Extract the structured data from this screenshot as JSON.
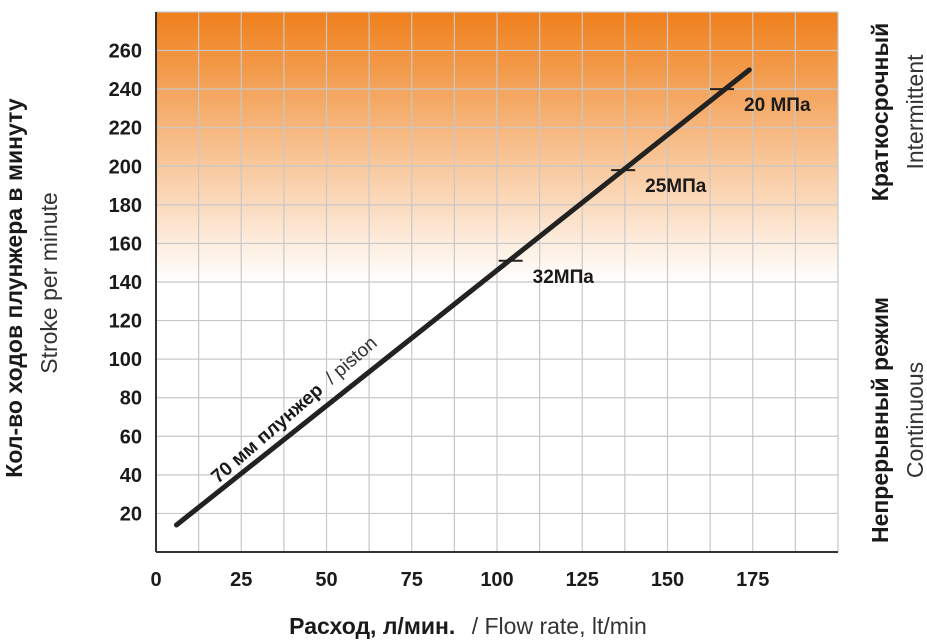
{
  "chart_data": {
    "type": "line",
    "xlabel_bold": "Расход, л/мин.",
    "xlabel_rest": "/ Flow rate, lt/min",
    "ylabel_bold": "Кол-во ходов плунжера в минуту",
    "ylabel_rest": "Stroke per minute",
    "xlim": [
      0,
      200
    ],
    "ylim": [
      0,
      280
    ],
    "xticks": [
      0,
      25,
      50,
      75,
      100,
      125,
      150,
      175
    ],
    "yticks": [
      20,
      40,
      60,
      80,
      100,
      120,
      140,
      160,
      180,
      200,
      220,
      240,
      260
    ],
    "grid": true,
    "zones": [
      {
        "bold": "Краткосрочный",
        "light": "Intermittent",
        "y_from": 140,
        "y_to": 280,
        "color_top": "#ef7f1a",
        "color_bottom": "#ffffff"
      },
      {
        "bold": "Непрерывный режим",
        "light": "Continuous",
        "y_from": 0,
        "y_to": 140
      }
    ],
    "series": [
      {
        "label_bold": "70 мм плунжер",
        "label_rest": "/ piston",
        "x": [
          6,
          174
        ],
        "y": [
          14,
          250
        ],
        "color": "#222222"
      }
    ],
    "pressure_marks": [
      {
        "label": "32МПа",
        "x": 104,
        "y": 151
      },
      {
        "label": "25МПа",
        "x": 137,
        "y": 198
      },
      {
        "label": "20 МПа",
        "x": 166,
        "y": 240
      }
    ]
  }
}
